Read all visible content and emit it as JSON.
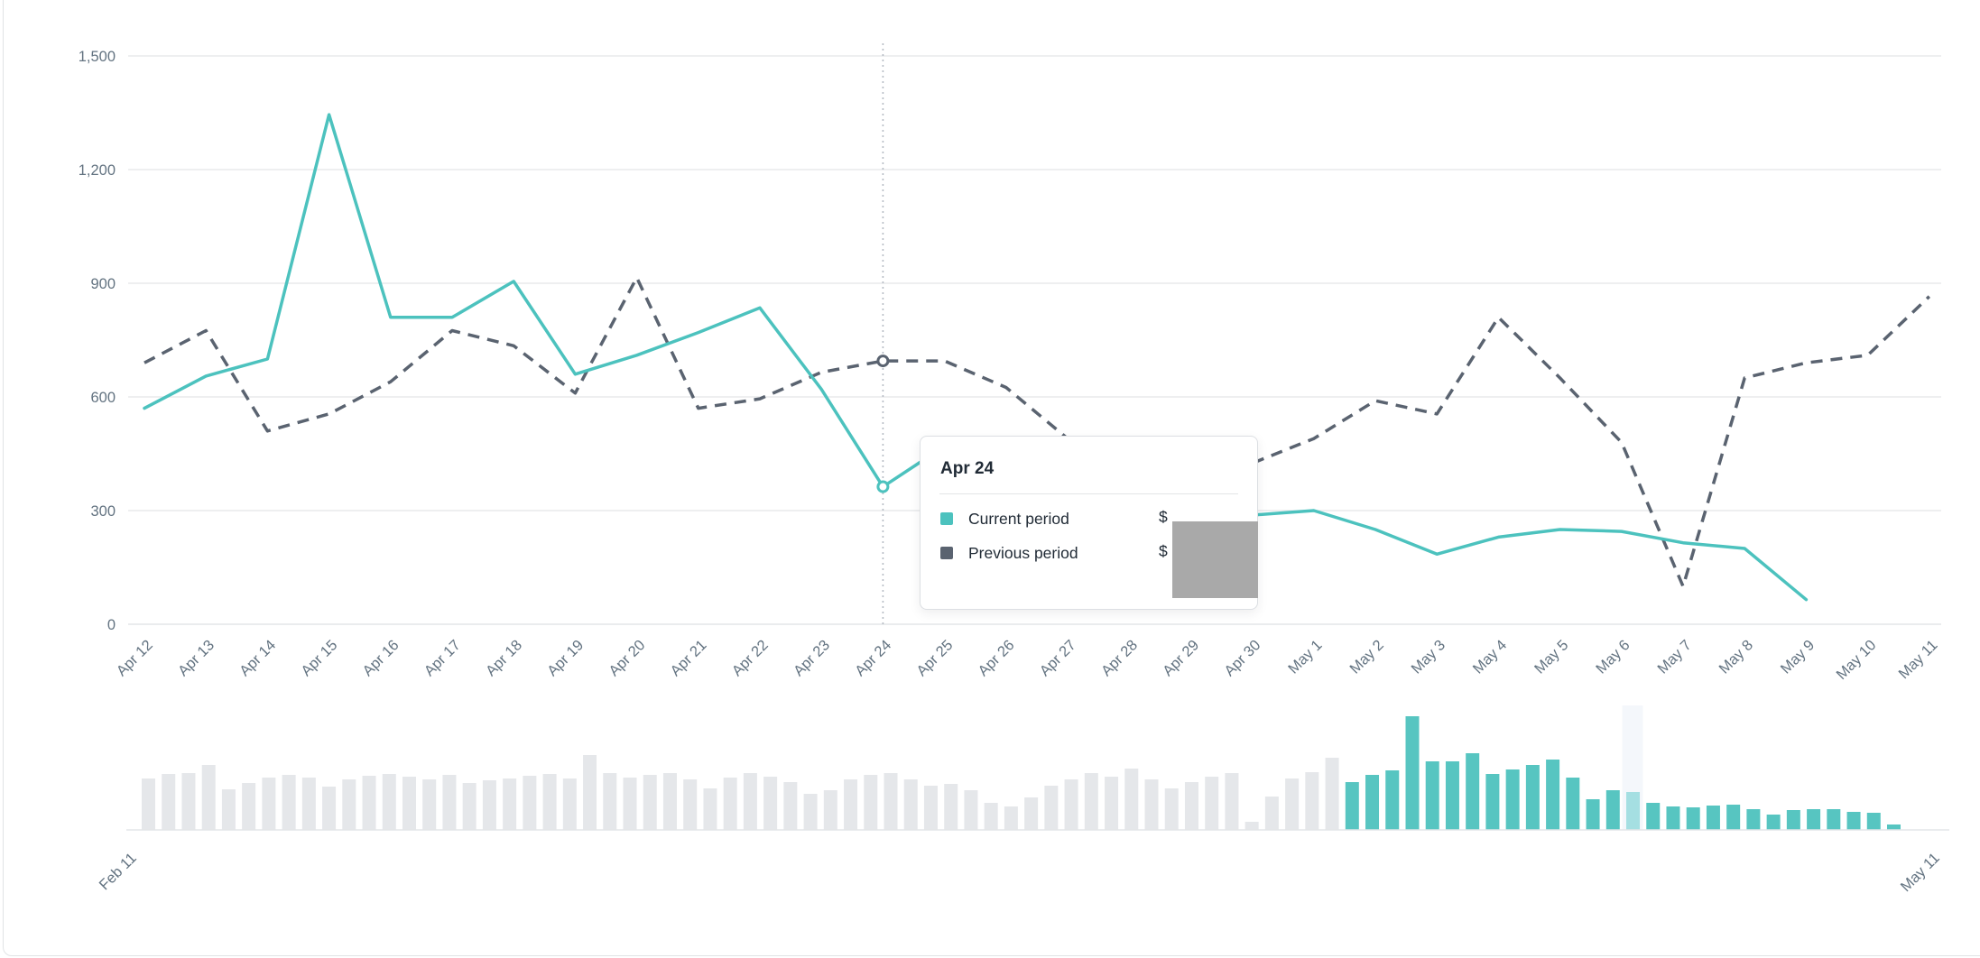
{
  "chart_data": {
    "type": "line",
    "title": "",
    "xlabel": "",
    "ylabel": "",
    "x_labels": [
      "Apr 12",
      "Apr 13",
      "Apr 14",
      "Apr 15",
      "Apr 16",
      "Apr 17",
      "Apr 18",
      "Apr 19",
      "Apr 20",
      "Apr 21",
      "Apr 22",
      "Apr 23",
      "Apr 24",
      "Apr 25",
      "Apr 26",
      "Apr 27",
      "Apr 28",
      "Apr 29",
      "Apr 30",
      "May 1",
      "May 2",
      "May 3",
      "May 4",
      "May 5",
      "May 6",
      "May 7",
      "May 8",
      "May 9",
      "May 10",
      "May 11"
    ],
    "y_ticks": [
      0,
      300,
      600,
      900,
      1200,
      1500
    ],
    "y_tick_labels": [
      "0",
      "300",
      "600",
      "900",
      "1,200",
      "1,500"
    ],
    "ylim": [
      0,
      1500
    ],
    "grid": "horizontal",
    "legend_position": "tooltip",
    "series": [
      {
        "name": "Current period",
        "style": "solid",
        "color": "#4cc2be",
        "values": [
          570,
          655,
          700,
          1345,
          810,
          810,
          905,
          660,
          710,
          770,
          835,
          620,
          363,
          470,
          450,
          320,
          277,
          267,
          288,
          300,
          250,
          185,
          230,
          250,
          245,
          215,
          200,
          65,
          null,
          null
        ]
      },
      {
        "name": "Previous period",
        "style": "dashed",
        "color": "#5a6370",
        "values": [
          690,
          775,
          510,
          555,
          640,
          775,
          735,
          610,
          915,
          570,
          595,
          665,
          695,
          695,
          625,
          490,
          420,
          400,
          425,
          490,
          590,
          555,
          810,
          650,
          480,
          100,
          650,
          690,
          710,
          865
        ]
      }
    ],
    "hover_index": 12,
    "hover_date": "Apr 24"
  },
  "tooltip": {
    "title": "Apr 24",
    "rows": [
      {
        "label": "Current period",
        "value_prefix": "$",
        "swatch_color": "#4cc2be"
      },
      {
        "label": "Previous period",
        "value_prefix": "$",
        "swatch_color": "#5a6370"
      }
    ],
    "values_redacted": true,
    "redaction_color": "#a9a9a9"
  },
  "mini_chart": {
    "type": "bar",
    "role": "date-range-selector",
    "start_label": "Feb 11",
    "end_label": "May 11",
    "unselected_color": "#e5e7ea",
    "selected_color": "#57c5c1",
    "highlight_bar_color": "#a5dfe2",
    "highlight_column_color": "#f4f7fb",
    "unselected_heights": [
      57,
      62,
      63,
      72,
      45,
      52,
      58,
      61,
      58,
      48,
      56,
      60,
      62,
      59,
      56,
      61,
      52,
      55,
      57,
      60,
      62,
      57,
      83,
      63,
      58,
      61,
      63,
      56,
      46,
      58,
      63,
      59,
      53,
      40,
      44,
      56,
      61,
      63,
      56,
      49,
      51,
      44,
      30,
      26,
      36,
      49,
      56,
      63,
      59,
      68,
      56,
      46,
      53,
      59,
      63,
      9,
      37,
      57,
      64,
      80
    ],
    "selected_heights": [
      53,
      61,
      66,
      126,
      76,
      76,
      85,
      62,
      67,
      72,
      78,
      58,
      34,
      44,
      42,
      30,
      26,
      25,
      27,
      28,
      23,
      17,
      22,
      23,
      23,
      20,
      19,
      6
    ],
    "highlight_index": 74
  },
  "colors": {
    "grid_line": "#e8eaec",
    "zero_line": "#e3e5e8",
    "axis_label": "#637381",
    "hover_line": "#b6bbc4",
    "card_border": "#e1e3e5",
    "background": "#ffffff"
  }
}
